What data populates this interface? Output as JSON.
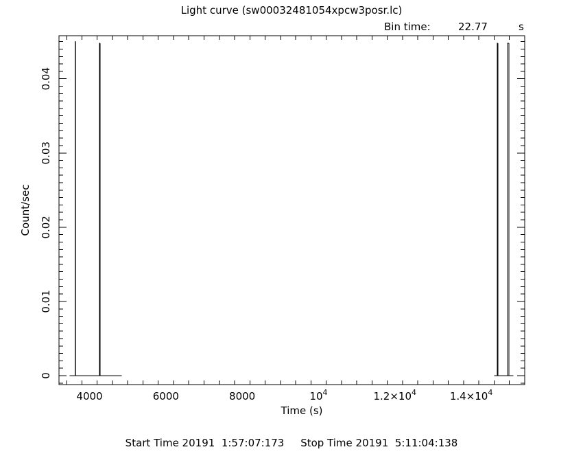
{
  "title": "Light curve (sw00032481054xpcw3posr.lc)",
  "bin": {
    "label": "Bin time:",
    "value": "22.77",
    "unit": "s"
  },
  "footer": {
    "start_label": "Start Time 20191",
    "start_value": "1:57:07:173",
    "stop_label": "Stop Time 20191",
    "stop_value": "5:11:04:138"
  },
  "chart_data": {
    "type": "line",
    "title": "Light curve (sw00032481054xpcw3posr.lc)",
    "xlabel": "Time (s)",
    "ylabel": "Count/sec",
    "xlim": [
      3200,
      15400
    ],
    "ylim": [
      -0.0012,
      0.0458
    ],
    "grid": false,
    "x_ticks": [
      {
        "value": 4000,
        "label": "4000"
      },
      {
        "value": 6000,
        "label": "6000"
      },
      {
        "value": 8000,
        "label": "8000"
      },
      {
        "value": 10000,
        "label": "10",
        "sup": "4"
      },
      {
        "value": 12000,
        "label": "1.2×10",
        "sup": "4"
      },
      {
        "value": 14000,
        "label": "1.4×10",
        "sup": "4"
      }
    ],
    "y_ticks": [
      {
        "value": 0,
        "label": "0"
      },
      {
        "value": 0.01,
        "label": "0.01"
      },
      {
        "value": 0.02,
        "label": "0.02"
      },
      {
        "value": 0.03,
        "label": "0.03"
      },
      {
        "value": 0.04,
        "label": "0.04"
      }
    ],
    "points": [
      {
        "x": 3606,
        "y": 0.0,
        "xerr": 0
      },
      {
        "x": 3620,
        "y": 0.045,
        "xerr": 11
      },
      {
        "x": 3634,
        "y": 0.0,
        "xerr": 0
      },
      {
        "x": 4246,
        "y": 0.0,
        "xerr": 0
      },
      {
        "x": 4263,
        "y": 0.0448,
        "xerr": 11
      },
      {
        "x": 4276,
        "y": 0.0,
        "xerr": 0
      },
      {
        "x": 14658,
        "y": 0.0,
        "xerr": 0
      },
      {
        "x": 14680,
        "y": 0.0448,
        "xerr": 11
      },
      {
        "x": 14700,
        "y": 0.0,
        "xerr": 0
      },
      {
        "x": 14932,
        "y": 0.0,
        "xerr": 0
      },
      {
        "x": 14950,
        "y": 0.0448,
        "xerr": 11
      },
      {
        "x": 14985,
        "y": 0.0,
        "xerr": 0
      }
    ],
    "baseline_segments": [
      [
        3480,
        4840
      ],
      [
        14600,
        15100
      ]
    ]
  }
}
